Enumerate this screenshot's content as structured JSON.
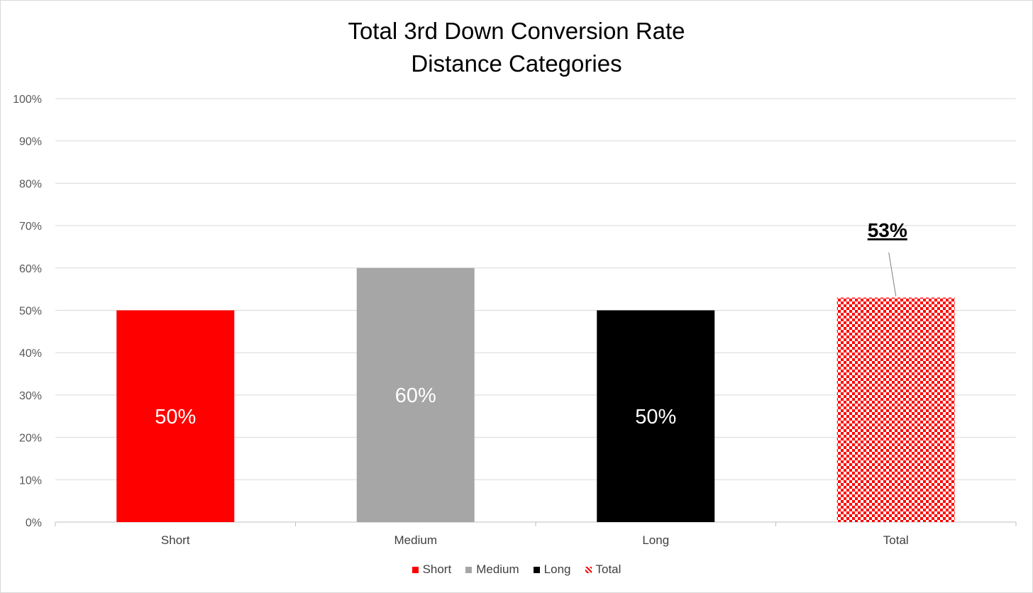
{
  "chart_data": {
    "type": "bar",
    "title": "Total 3rd Down Conversion Rate",
    "subtitle": "Distance Categories",
    "categories": [
      "Short",
      "Medium",
      "Long",
      "Total"
    ],
    "values": [
      50,
      60,
      50,
      53
    ],
    "data_labels": [
      "50%",
      "60%",
      "50%",
      "53%"
    ],
    "colors": [
      "#ff0000",
      "#a6a6a6",
      "#000000",
      "checker-red"
    ],
    "ylim": [
      0,
      100
    ],
    "yticks": [
      "0%",
      "10%",
      "20%",
      "30%",
      "40%",
      "50%",
      "60%",
      "70%",
      "80%",
      "90%",
      "100%"
    ],
    "grid": true,
    "legend_position": "bottom",
    "legend": [
      "Short",
      "Medium",
      "Long",
      "Total"
    ]
  }
}
